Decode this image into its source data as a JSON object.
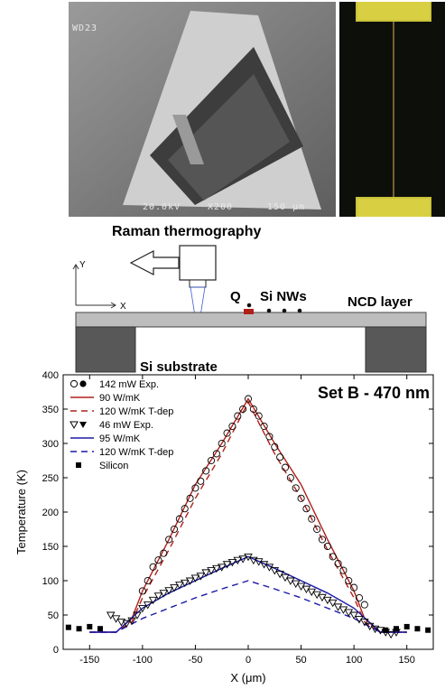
{
  "sem_image": {
    "label_top": "WD23",
    "label_kv": "20.0kV",
    "label_mag": "X200",
    "label_scale": "150 µm"
  },
  "schematic": {
    "title": "Raman thermography",
    "axis_x": "X",
    "axis_y": "Y",
    "label_q": "Q",
    "label_nws": "Si NWs",
    "label_ncd": "NCD layer",
    "label_substrate": "Si substrate"
  },
  "chart_data": {
    "type": "scatter",
    "annotation": "Set B - 470 nm",
    "xlabel": "X (μm)",
    "ylabel": "Temperature (K)",
    "xlim": [
      -175,
      175
    ],
    "ylim": [
      0,
      400
    ],
    "xticks": [
      -150,
      -100,
      -50,
      0,
      50,
      100,
      150
    ],
    "yticks": [
      0,
      50,
      100,
      150,
      200,
      250,
      300,
      350,
      400
    ],
    "legend_position": "top-left",
    "colors": {
      "red": "#b0201a",
      "blue": "#1a1aa8",
      "black": "#000000"
    },
    "legend": [
      {
        "label": "142 mW Exp.",
        "kind": "markers-circle"
      },
      {
        "label": "90 W/mK",
        "kind": "solid-red"
      },
      {
        "label": "120 W/mK T-dep",
        "kind": "dashed-red"
      },
      {
        "label": "46 mW Exp.",
        "kind": "markers-triangle"
      },
      {
        "label": "95 W/mK",
        "kind": "solid-blue"
      },
      {
        "label": "120 W/mK T-dep",
        "kind": "dashed-blue"
      },
      {
        "label": "Silicon",
        "kind": "square"
      }
    ],
    "series": [
      {
        "name": "142 mW Exp.",
        "marker": "circle",
        "x": [
          -100,
          -95,
          -90,
          -85,
          -80,
          -75,
          -70,
          -65,
          -60,
          -55,
          -50,
          -45,
          -40,
          -35,
          -30,
          -25,
          -20,
          -15,
          -10,
          -5,
          0,
          5,
          10,
          15,
          20,
          25,
          30,
          35,
          40,
          45,
          50,
          55,
          60,
          65,
          70,
          75,
          80,
          85,
          90,
          95,
          100,
          105,
          110
        ],
        "y": [
          85,
          100,
          120,
          130,
          140,
          160,
          175,
          190,
          205,
          220,
          235,
          245,
          260,
          275,
          285,
          300,
          315,
          325,
          340,
          350,
          365,
          350,
          340,
          325,
          310,
          295,
          280,
          265,
          250,
          235,
          220,
          205,
          190,
          175,
          160,
          150,
          135,
          125,
          115,
          100,
          90,
          75,
          65
        ]
      },
      {
        "name": "46 mW Exp.",
        "marker": "triangle",
        "x": [
          -130,
          -125,
          -120,
          -115,
          -110,
          -105,
          -100,
          -95,
          -90,
          -85,
          -80,
          -75,
          -70,
          -65,
          -60,
          -55,
          -50,
          -45,
          -40,
          -35,
          -30,
          -25,
          -20,
          -15,
          -10,
          -5,
          0,
          5,
          10,
          15,
          20,
          25,
          30,
          35,
          40,
          45,
          50,
          55,
          60,
          65,
          70,
          75,
          80,
          85,
          90,
          95,
          100,
          105,
          110,
          115,
          120,
          125,
          130,
          135,
          140
        ],
        "y": [
          50,
          45,
          40,
          38,
          42,
          50,
          60,
          65,
          72,
          78,
          82,
          86,
          90,
          94,
          97,
          100,
          104,
          107,
          112,
          115,
          118,
          120,
          124,
          127,
          130,
          132,
          135,
          130,
          128,
          124,
          120,
          115,
          110,
          105,
          100,
          96,
          92,
          88,
          84,
          80,
          76,
          72,
          68,
          62,
          58,
          54,
          50,
          44,
          40,
          34,
          30,
          28,
          25,
          22,
          25
        ]
      },
      {
        "name": "Silicon",
        "marker": "square",
        "x": [
          -170,
          -160,
          -150,
          -140,
          130,
          140,
          150,
          160,
          170
        ],
        "y": [
          32,
          30,
          33,
          30,
          28,
          30,
          33,
          30,
          28
        ]
      },
      {
        "name": "90 W/mK",
        "style": "solid-red",
        "x": [
          -150,
          -125,
          -110,
          -100,
          -75,
          -50,
          -25,
          0,
          25,
          50,
          75,
          100,
          110,
          125,
          150
        ],
        "y": [
          25,
          25,
          45,
          85,
          160,
          240,
          300,
          365,
          300,
          240,
          160,
          85,
          45,
          25,
          25
        ]
      },
      {
        "name": "120 W/mK T-dep",
        "style": "dashed-red",
        "x": [
          -150,
          -125,
          -110,
          -100,
          -75,
          -50,
          -25,
          0,
          25,
          50,
          75,
          100,
          110,
          125,
          150
        ],
        "y": [
          25,
          25,
          40,
          75,
          145,
          220,
          285,
          360,
          285,
          220,
          145,
          75,
          40,
          25,
          25
        ]
      },
      {
        "name": "95 W/mK",
        "style": "solid-blue",
        "x": [
          -150,
          -125,
          -100,
          -75,
          -50,
          -25,
          0,
          25,
          50,
          75,
          100,
          125,
          150
        ],
        "y": [
          25,
          25,
          60,
          82,
          100,
          118,
          135,
          118,
          100,
          82,
          60,
          25,
          25
        ]
      },
      {
        "name": "120 W/mK T-dep",
        "style": "dashed-blue",
        "x": [
          -150,
          -125,
          -100,
          -75,
          -50,
          -25,
          0,
          25,
          50,
          75,
          100,
          125,
          150
        ],
        "y": [
          25,
          25,
          45,
          60,
          75,
          88,
          100,
          88,
          75,
          60,
          45,
          25,
          25
        ]
      }
    ]
  }
}
